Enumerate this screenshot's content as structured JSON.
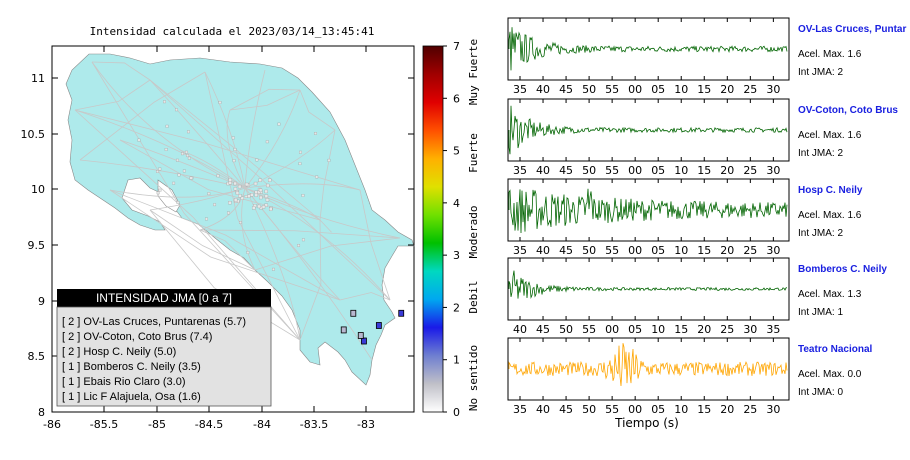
{
  "map": {
    "title": "Intensidad calculada el 2023/03/14_13:45:41",
    "x_ticks": [
      "-86",
      "-85.5",
      "-85",
      "-84.5",
      "-84",
      "-83.5",
      "-83"
    ],
    "y_ticks": [
      "11",
      "10.5",
      "10",
      "9.5",
      "9",
      "8.5",
      "8"
    ],
    "legend_title": "INTENSIDAD JMA [0 a 7]",
    "legend_items": [
      "[ 2 ]  OV-Las Cruces, Puntarenas (5.7)",
      "[ 2 ]  OV-Coton, Coto Brus (7.4)",
      "[ 2 ]  Hosp C. Neily (5.0)",
      "[ 1 ]  Bomberos C. Neily (3.5)",
      "[ 1 ]  Ebais Rio Claro (3.0)",
      "[ 1 ]  Lic F Alajuela, Osa (1.6)"
    ]
  },
  "colorbar": {
    "ticks": [
      "7",
      "6",
      "5",
      "4",
      "3",
      "2",
      "1",
      "0"
    ],
    "categories": [
      "Muy Fuerte",
      "Fuerte",
      "Moderado",
      "Debil",
      "No sentido"
    ],
    "colors": [
      "#ffffff",
      "#c0c0c8",
      "#6f7fd0",
      "#1a1ae8",
      "#00a8f0",
      "#00d8c0",
      "#00c000",
      "#70e000",
      "#e0e000",
      "#ffb000",
      "#ff5000",
      "#e00000",
      "#a00000",
      "#500000"
    ]
  },
  "seismograms": {
    "xlabel": "Tiempo (s)",
    "traces": [
      {
        "station": "OV-Las Cruces, Puntar",
        "accel": "Acel. Max. 1.6",
        "jma": "Int JMA: 2",
        "color": "#006400",
        "ticks": [
          "35",
          "40",
          "45",
          "50",
          "55",
          "00",
          "05",
          "10",
          "15",
          "20",
          "25",
          "30"
        ]
      },
      {
        "station": "OV-Coton, Coto Brus",
        "accel": "Acel. Max. 1.6",
        "jma": "Int JMA: 2",
        "color": "#006400",
        "ticks": [
          "35",
          "40",
          "45",
          "50",
          "55",
          "00",
          "05",
          "10",
          "15",
          "20",
          "25",
          "30"
        ]
      },
      {
        "station": "Hosp C. Neily",
        "accel": "Acel. Max. 1.6",
        "jma": "Int JMA: 2",
        "color": "#006400",
        "ticks": [
          "35",
          "40",
          "45",
          "50",
          "55",
          "00",
          "05",
          "10",
          "15",
          "20",
          "25",
          "30"
        ]
      },
      {
        "station": "Bomberos C. Neily",
        "accel": "Acel. Max. 1.3",
        "jma": "Int JMA: 1",
        "color": "#006400",
        "ticks": [
          "40",
          "45",
          "50",
          "55",
          "00",
          "05",
          "10",
          "15",
          "20",
          "25",
          "30",
          "35"
        ]
      },
      {
        "station": "Teatro Nacional",
        "accel": "Acel. Max. 0.0",
        "jma": "Int JMA: 0",
        "color": "#ffa500",
        "ticks": [
          "35",
          "40",
          "45",
          "50",
          "55",
          "00",
          "05",
          "10",
          "15",
          "20",
          "25",
          "30"
        ]
      }
    ]
  },
  "chart_data": {
    "type": "scatter",
    "title": "Intensidad calculada el 2023/03/14_13:45:41",
    "xlim": [
      -86,
      -82.6
    ],
    "ylim": [
      8,
      11.3
    ],
    "stations": [
      {
        "name": "OV-Las Cruces, Puntarenas",
        "x": -82.93,
        "y": 8.78,
        "jma": 2,
        "value": 5.7
      },
      {
        "name": "OV-Coton, Coto Brus",
        "x": -82.72,
        "y": 8.89,
        "jma": 2,
        "value": 7.4
      },
      {
        "name": "Hosp C. Neily",
        "x": -83.07,
        "y": 8.64,
        "jma": 2,
        "value": 5.0
      },
      {
        "name": "Bomberos C. Neily",
        "x": -83.17,
        "y": 8.89,
        "jma": 1,
        "value": 3.5
      },
      {
        "name": "Ebais Rio Claro",
        "x": -83.1,
        "y": 8.69,
        "jma": 1,
        "value": 3.0
      },
      {
        "name": "Lic F Alajuela, Osa",
        "x": -83.26,
        "y": 8.74,
        "jma": 1,
        "value": 1.6
      }
    ]
  }
}
